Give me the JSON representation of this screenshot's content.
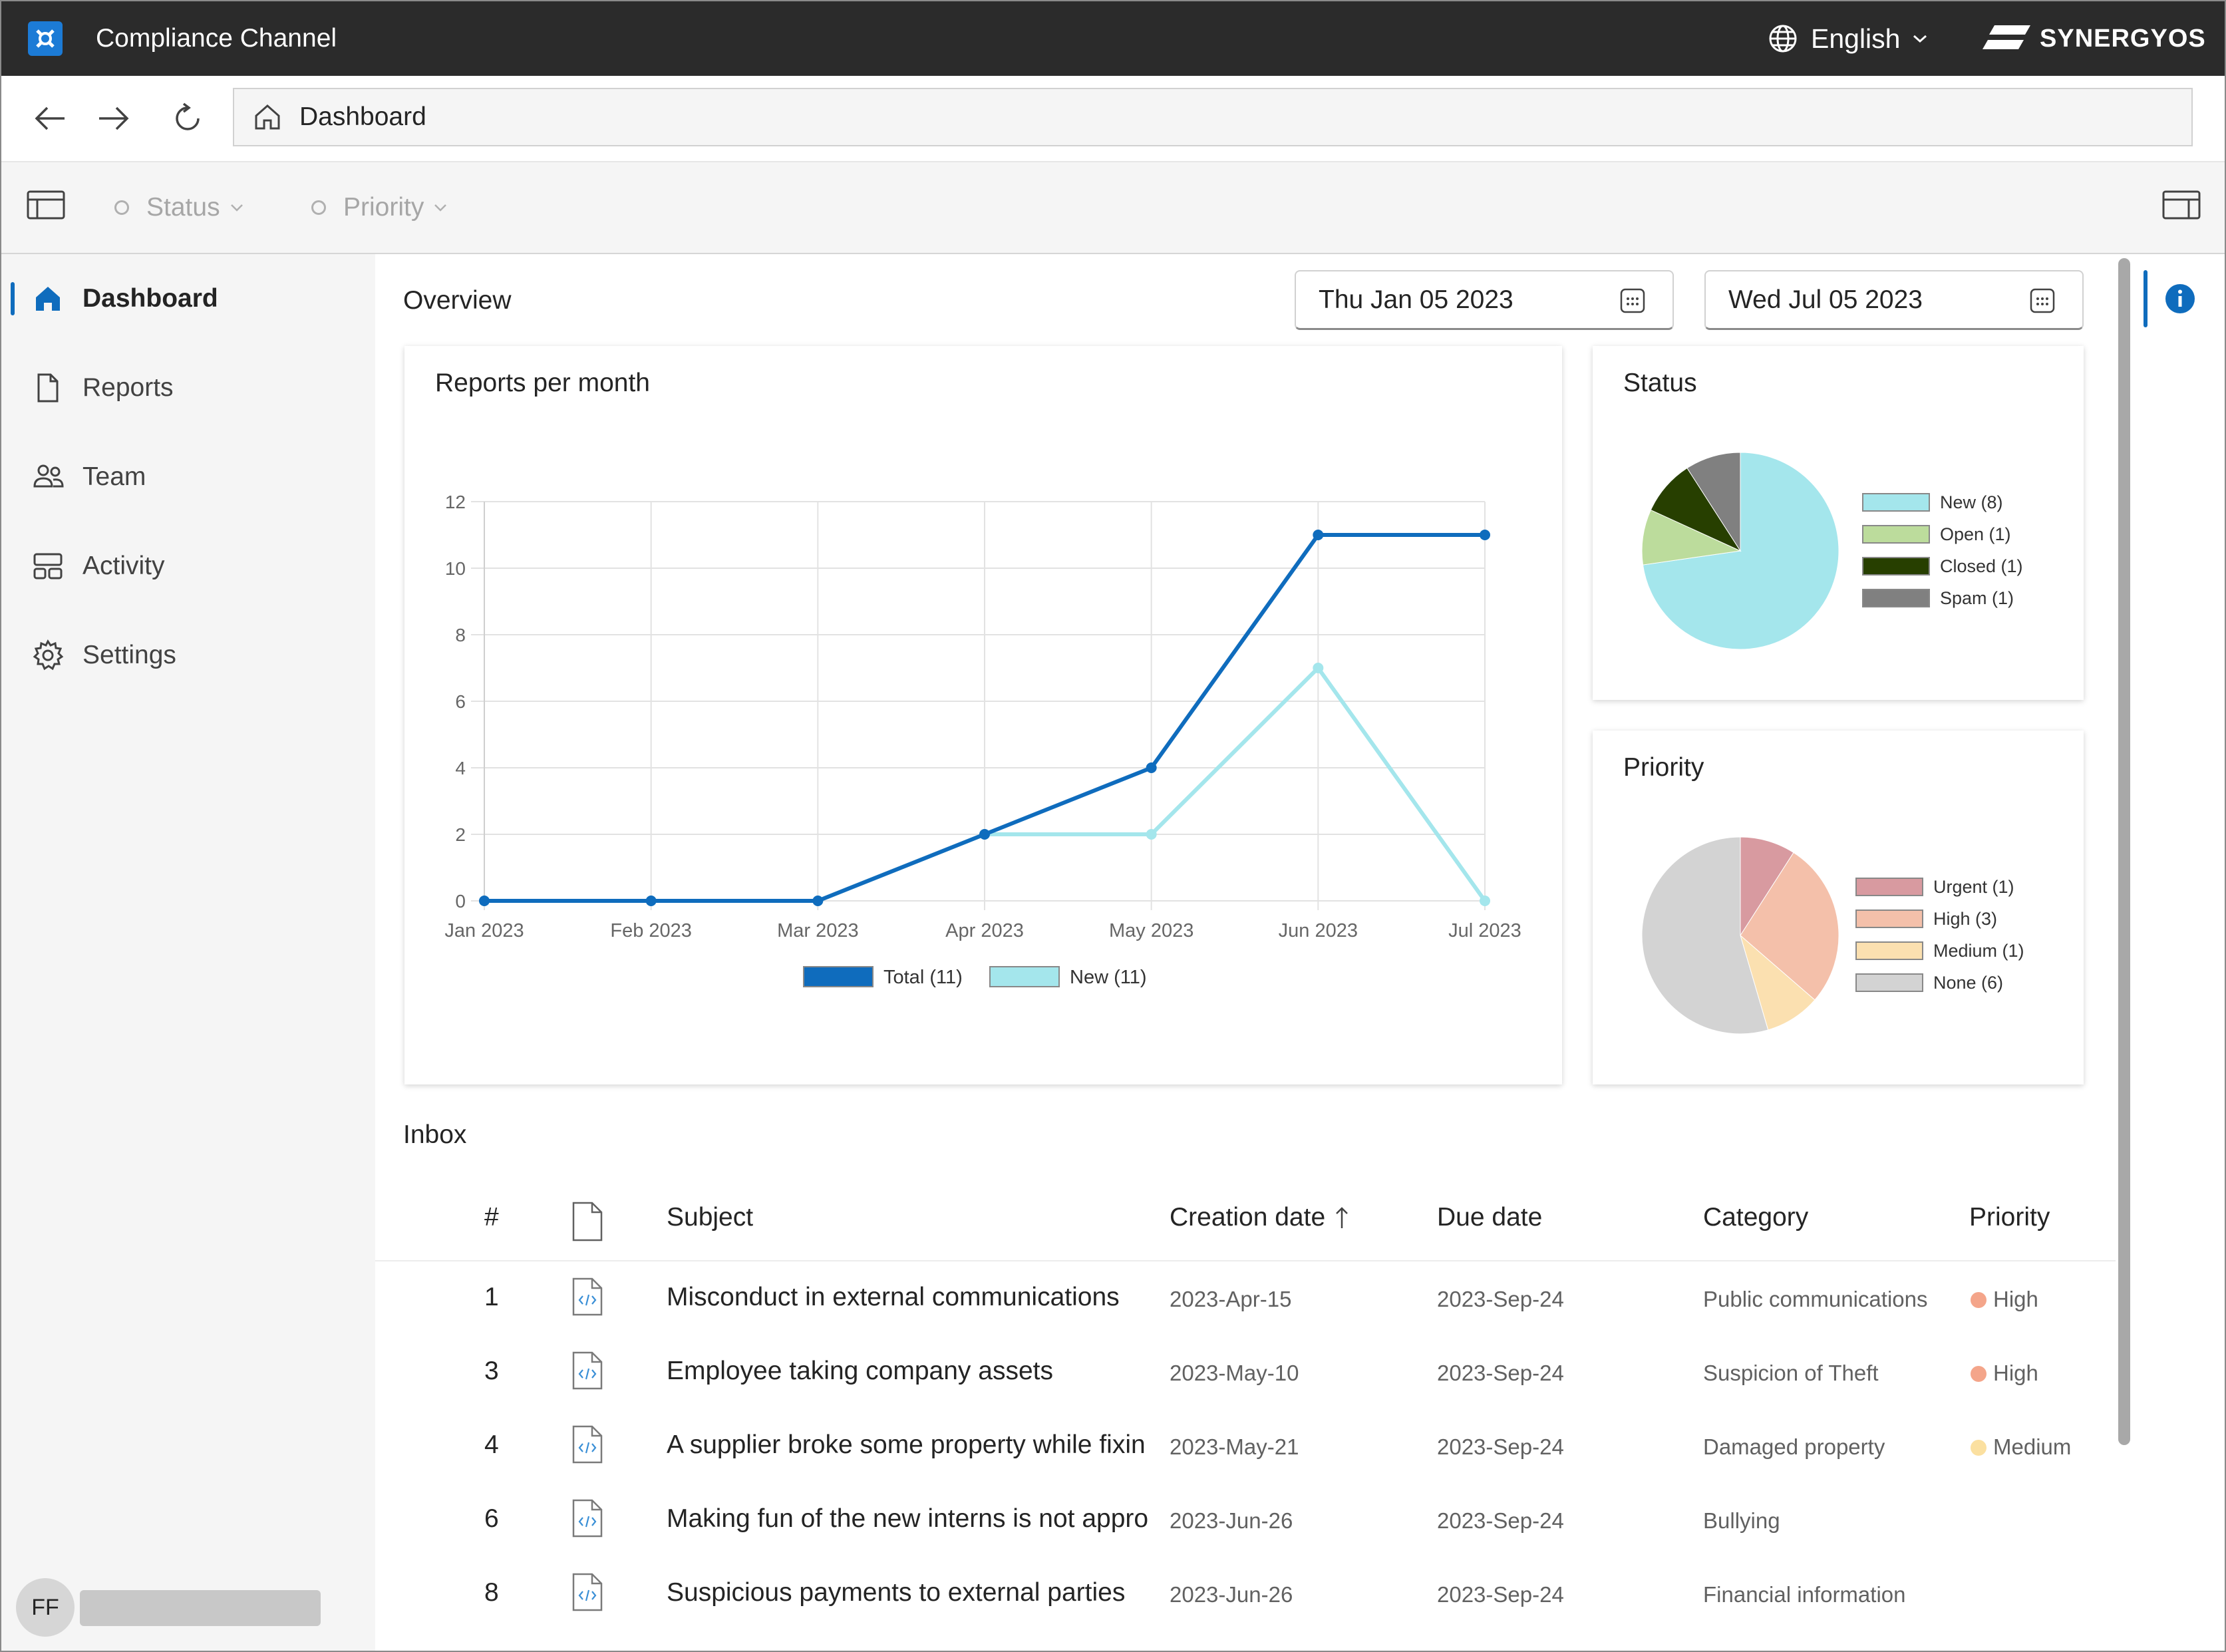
{
  "app": {
    "title": "Compliance Channel",
    "language": "English",
    "brand": "SYNERGYOS"
  },
  "nav": {
    "address": "Dashboard"
  },
  "filters": [
    {
      "label": "Status"
    },
    {
      "label": "Priority"
    }
  ],
  "sidebar": {
    "items": [
      {
        "label": "Dashboard",
        "icon": "home-icon",
        "active": true
      },
      {
        "label": "Reports",
        "icon": "document-icon"
      },
      {
        "label": "Team",
        "icon": "people-icon"
      },
      {
        "label": "Activity",
        "icon": "activity-icon"
      },
      {
        "label": "Settings",
        "icon": "gear-icon"
      }
    ],
    "user_initials": "FF"
  },
  "overview": {
    "title": "Overview",
    "date_from": "Thu Jan 05 2023",
    "date_to": "Wed Jul 05 2023"
  },
  "chart_data": [
    {
      "type": "line",
      "title": "Reports per month",
      "categories": [
        "Jan 2023",
        "Feb 2023",
        "Mar 2023",
        "Apr 2023",
        "May 2023",
        "Jun 2023",
        "Jul 2023"
      ],
      "series": [
        {
          "name": "Total (11)",
          "values": [
            0,
            0,
            0,
            2,
            4,
            11,
            11
          ],
          "color": "#0f6cbd"
        },
        {
          "name": "New (11)",
          "values": [
            0,
            0,
            0,
            2,
            2,
            7,
            0
          ],
          "color": "#a4e6ec"
        }
      ],
      "ylim": [
        0,
        12
      ],
      "yticks": [
        "0",
        "2",
        "4",
        "6",
        "8",
        "10",
        "12"
      ],
      "grid": true,
      "legend": "bottom"
    },
    {
      "type": "pie",
      "title": "Status",
      "labels": [
        "New (8)",
        "Open (1)",
        "Closed (1)",
        "Spam (1)"
      ],
      "values": [
        8,
        1,
        1,
        1
      ],
      "colors": [
        "#a4e6ec",
        "#bcdc9c",
        "#273f00",
        "#808080"
      ],
      "legend": "right"
    },
    {
      "type": "pie",
      "title": "Priority",
      "labels": [
        "Urgent (1)",
        "High (3)",
        "Medium (1)",
        "None (6)"
      ],
      "values": [
        1,
        3,
        1,
        6
      ],
      "colors": [
        "#d89aa0",
        "#f4c0aa",
        "#fbe0b0",
        "#d3d3d3"
      ],
      "legend": "right"
    }
  ],
  "inbox": {
    "title": "Inbox",
    "columns": {
      "num": "#",
      "subject": "Subject",
      "created": "Creation date",
      "due": "Due date",
      "category": "Category",
      "priority": "Priority"
    },
    "rows": [
      {
        "num": "1",
        "subject": "Misconduct in external communications",
        "created": "2023-Apr-15",
        "due": "2023-Sep-24",
        "category": "Public communications",
        "priority": "High",
        "priority_color": "#f4a58a"
      },
      {
        "num": "3",
        "subject": "Employee taking company assets",
        "created": "2023-May-10",
        "due": "2023-Sep-24",
        "category": "Suspicion of Theft",
        "priority": "High",
        "priority_color": "#f4a58a"
      },
      {
        "num": "4",
        "subject": "A supplier broke some property while fixin",
        "created": "2023-May-21",
        "due": "2023-Sep-24",
        "category": "Damaged property",
        "priority": "Medium",
        "priority_color": "#fbe0a0"
      },
      {
        "num": "6",
        "subject": "Making fun of the new interns is not appro",
        "created": "2023-Jun-26",
        "due": "2023-Sep-24",
        "category": "Bullying",
        "priority": "",
        "priority_color": ""
      },
      {
        "num": "8",
        "subject": "Suspicious payments to external parties",
        "created": "2023-Jun-26",
        "due": "2023-Sep-24",
        "category": "Financial information",
        "priority": "",
        "priority_color": ""
      }
    ]
  }
}
